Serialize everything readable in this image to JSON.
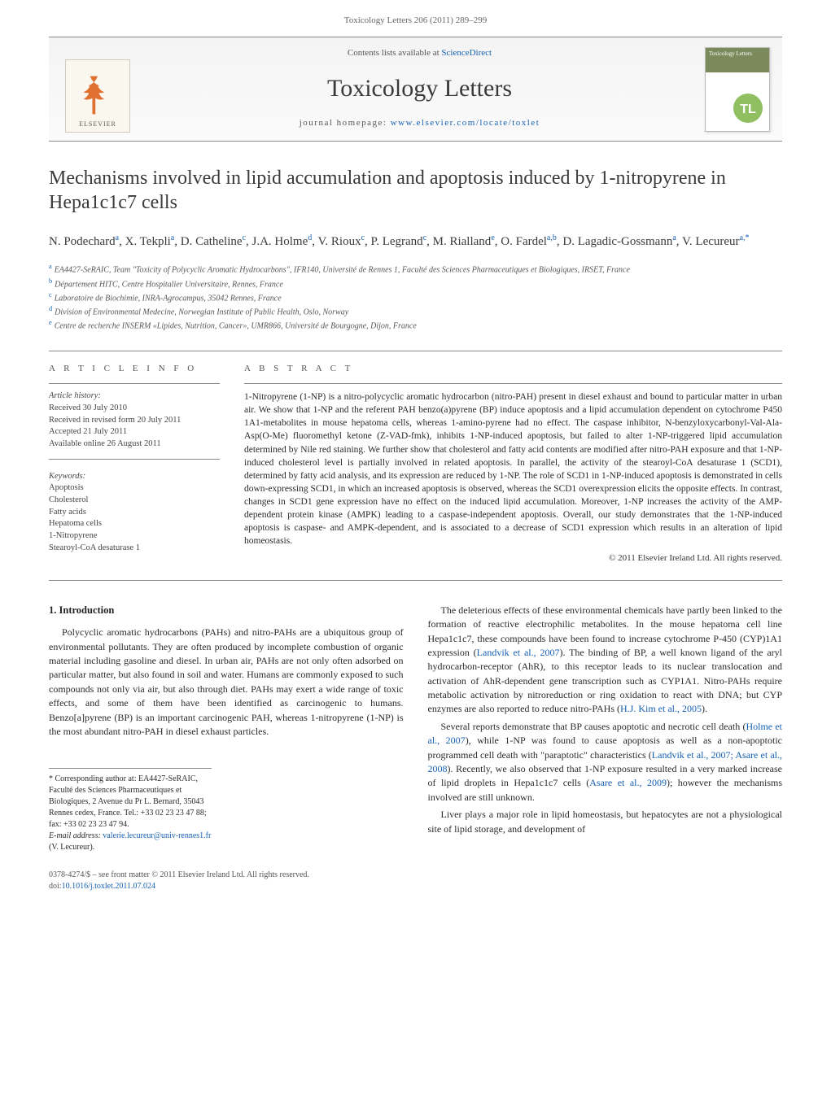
{
  "running_head": "Toxicology Letters 206 (2011) 289–299",
  "masthead": {
    "contents_pre": "Contents lists available at ",
    "contents_link": "ScienceDirect",
    "journal": "Toxicology Letters",
    "homepage_pre": "journal homepage: ",
    "homepage_link": "www.elsevier.com/locate/toxlet",
    "elsevier_word": "ELSEVIER",
    "cover_text": "Toxicology Letters",
    "cover_tl": "TL",
    "cover_color": "#7a8a5a",
    "cover_logo_color": "#6aa84f"
  },
  "title": "Mechanisms involved in lipid accumulation and apoptosis induced by 1-nitropyrene in Hepa1c1c7 cells",
  "authors_html": "N. Podechard<sup>a</sup>, X. Tekpli<sup>a</sup>, D. Catheline<sup>c</sup>, J.A. Holme<sup>d</sup>, V. Rioux<sup>c</sup>, P. Legrand<sup>c</sup>, M. Rialland<sup>e</sup>, O. Fardel<sup>a,b</sup>, D. Lagadic-Gossmann<sup>a</sup>, V. Lecureur<sup>a,*</sup>",
  "affiliations": [
    {
      "key": "a",
      "text": "EA4427-SeRAIC, Team \"Toxicity of Polycyclic Aromatic Hydrocarbons\", IFR140, Université de Rennes 1, Faculté des Sciences Pharmaceutiques et Biologiques, IRSET, France"
    },
    {
      "key": "b",
      "text": "Département HITC, Centre Hospitalier Universitaire, Rennes, France"
    },
    {
      "key": "c",
      "text": "Laboratoire de Biochimie, INRA-Agrocampus, 35042 Rennes, France"
    },
    {
      "key": "d",
      "text": "Division of Environmental Medecine, Norwegian Institute of Public Health, Oslo, Norway"
    },
    {
      "key": "e",
      "text": "Centre de recherche INSERM «Lipides, Nutrition, Cancer», UMR866, Université de Bourgogne, Dijon, France"
    }
  ],
  "info": {
    "heading": "A R T I C L E   I N F O",
    "history_label": "Article history:",
    "history": [
      "Received 30 July 2010",
      "Received in revised form 20 July 2011",
      "Accepted 21 July 2011",
      "Available online 26 August 2011"
    ],
    "kw_label": "Keywords:",
    "keywords": [
      "Apoptosis",
      "Cholesterol",
      "Fatty acids",
      "Hepatoma cells",
      "1-Nitropyrene",
      "Stearoyl-CoA desaturase 1"
    ]
  },
  "abstract": {
    "heading": "A B S T R A C T",
    "text": "1-Nitropyrene (1-NP) is a nitro-polycyclic aromatic hydrocarbon (nitro-PAH) present in diesel exhaust and bound to particular matter in urban air. We show that 1-NP and the referent PAH benzo(a)pyrene (BP) induce apoptosis and a lipid accumulation dependent on cytochrome P450 1A1-metabolites in mouse hepatoma cells, whereas 1-amino-pyrene had no effect. The caspase inhibitor, N-benzyloxycarbonyl-Val-Ala-Asp(O-Me) fluoromethyl ketone (Z-VAD-fmk), inhibits 1-NP-induced apoptosis, but failed to alter 1-NP-triggered lipid accumulation determined by Nile red staining. We further show that cholesterol and fatty acid contents are modified after nitro-PAH exposure and that 1-NP-induced cholesterol level is partially involved in related apoptosis. In parallel, the activity of the stearoyl-CoA desaturase 1 (SCD1), determined by fatty acid analysis, and its expression are reduced by 1-NP. The role of SCD1 in 1-NP-induced apoptosis is demonstrated in cells down-expressing SCD1, in which an increased apoptosis is observed, whereas the SCD1 overexpression elicits the opposite effects. In contrast, changes in SCD1 gene expression have no effect on the induced lipid accumulation. Moreover, 1-NP increases the activity of the AMP-dependent protein kinase (AMPK) leading to a caspase-independent apoptosis. Overall, our study demonstrates that the 1-NP-induced apoptosis is caspase- and AMPK-dependent, and is associated to a decrease of SCD1 expression which results in an alteration of lipid homeostasis.",
    "copyright": "© 2011 Elsevier Ireland Ltd. All rights reserved."
  },
  "section1_heading": "1. Introduction",
  "left_paras": [
    "Polycyclic aromatic hydrocarbons (PAHs) and nitro-PAHs are a ubiquitous group of environmental pollutants. They are often produced by incomplete combustion of organic material including gasoline and diesel. In urban air, PAHs are not only often adsorbed on particular matter, but also found in soil and water. Humans are commonly exposed to such compounds not only via air, but also through diet. PAHs may exert a wide range of toxic effects, and some of them have been identified as carcinogenic to humans. Benzo[a]pyrene (BP) is an important carcinogenic PAH, whereas 1-nitropyrene (1-NP) is the most abundant nitro-PAH in diesel exhaust particles."
  ],
  "right_paras": [
    {
      "text": "The deleterious effects of these environmental chemicals have partly been linked to the formation of reactive electrophilic metabolites. In the mouse hepatoma cell line Hepa1c1c7, these compounds have been found to increase cytochrome P-450 (CYP)1A1 expression (",
      "cite": "Landvik et al., 2007",
      "tail": "). The binding of BP, a well known ligand of the aryl hydrocarbon-receptor (AhR), to this receptor leads to its nuclear translocation and activation of AhR-dependent gene transcription such as CYP1A1. Nitro-PAHs require metabolic activation by nitroreduction or ring oxidation to react with DNA; but CYP enzymes are also reported to reduce nitro-PAHs ("
    },
    {
      "cite": "H.J. Kim et al., 2005",
      "tail": ")."
    },
    {
      "text": "Several reports demonstrate that BP causes apoptotic and necrotic cell death (",
      "cite": "Holme et al., 2007",
      "tail": "), while 1-NP was found to cause apoptosis as well as a non-apoptotic programmed cell death with \"paraptotic\" characteristics ("
    },
    {
      "cite": "Landvik et al., 2007; Asare et al., 2008",
      "tail": "). Recently, we also observed that 1-NP exposure resulted in a very marked increase of lipid droplets in Hepa1c1c7 cells ("
    },
    {
      "cite": "Asare et al., 2009",
      "tail": "); however the mechanisms involved are still unknown."
    },
    {
      "text": "Liver plays a major role in lipid homeostasis, but hepatocytes are not a physiological site of lipid storage, and development of"
    }
  ],
  "footnotes": {
    "corr": "* Corresponding author at: EA4427-SeRAIC, Faculté des Sciences Pharmaceutiques et Biologiques, 2 Avenue du Pr L. Bernard, 35043 Rennes cedex, France. Tel.: +33 02 23 23 47 88; fax: +33 02 23 23 47 94.",
    "email_label": "E-mail address: ",
    "email": "valerie.lecureur@univ-rennes1.fr",
    "email_suffix": " (V. Lecureur)."
  },
  "copyright_footer": {
    "line": "0378-4274/$ – see front matter © 2011 Elsevier Ireland Ltd. All rights reserved.",
    "doi_label": "doi:",
    "doi": "10.1016/j.toxlet.2011.07.024"
  },
  "colors": {
    "link": "#1560b3",
    "text": "#2a2a2a",
    "muted": "#555",
    "rule": "#888"
  }
}
